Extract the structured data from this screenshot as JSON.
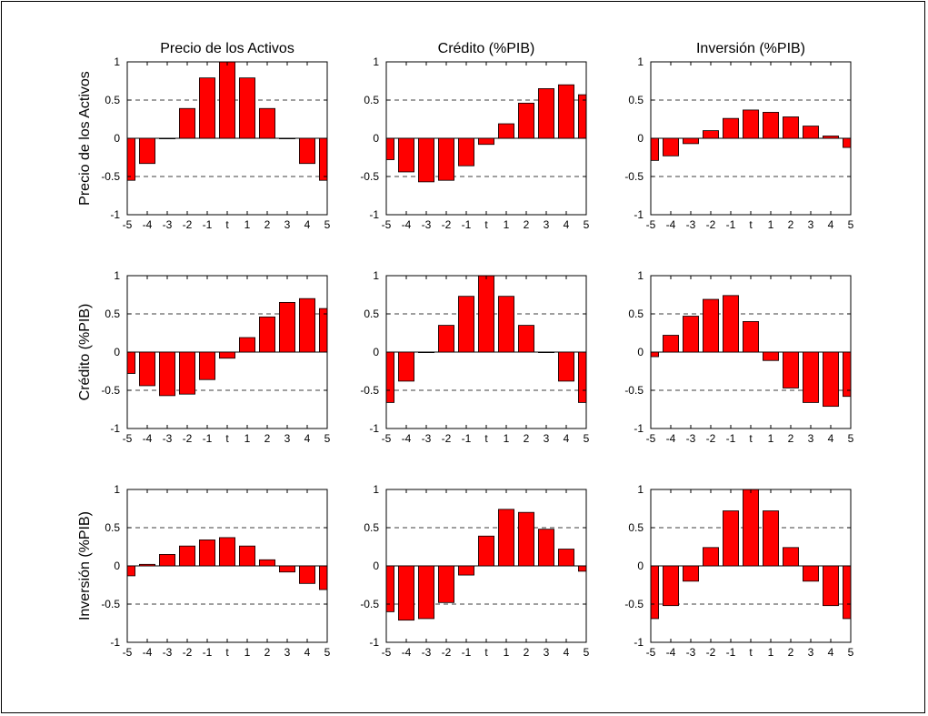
{
  "chart_data": {
    "type": "bar",
    "layout": "3x3 grid",
    "categories": [
      "-5",
      "-4",
      "-3",
      "-2",
      "-1",
      "t",
      "1",
      "2",
      "3",
      "4",
      "5"
    ],
    "ylim": [
      -1,
      1
    ],
    "yticks": [
      "-1",
      "-0.5",
      "0",
      "0.5",
      "1"
    ],
    "grid": "dashed lines at -0.5 and 0.5",
    "bar_color": "#ff0000",
    "bar_edge_color": "#000000",
    "column_titles": [
      "Precio de los Activos",
      "Crédito (%PIB)",
      "Inversión (%PIB)"
    ],
    "row_labels": [
      "Precio de los Activos",
      "Crédito (%PIB)",
      "Inversión (%PIB)"
    ],
    "panels": [
      {
        "row": 0,
        "col": 0,
        "values": [
          -0.55,
          -0.33,
          0.0,
          0.39,
          0.79,
          1.0,
          0.79,
          0.39,
          0.0,
          -0.33,
          -0.55
        ]
      },
      {
        "row": 0,
        "col": 1,
        "values": [
          -0.28,
          -0.44,
          -0.57,
          -0.55,
          -0.36,
          -0.08,
          0.19,
          0.46,
          0.65,
          0.7,
          0.57
        ]
      },
      {
        "row": 0,
        "col": 2,
        "values": [
          -0.29,
          -0.23,
          -0.07,
          0.1,
          0.26,
          0.37,
          0.34,
          0.28,
          0.16,
          0.03,
          -0.12
        ]
      },
      {
        "row": 1,
        "col": 0,
        "values": [
          -0.28,
          -0.44,
          -0.57,
          -0.55,
          -0.36,
          -0.08,
          0.19,
          0.46,
          0.65,
          0.7,
          0.57
        ]
      },
      {
        "row": 1,
        "col": 1,
        "values": [
          -0.66,
          -0.38,
          0.0,
          0.35,
          0.73,
          1.0,
          0.73,
          0.35,
          0.0,
          -0.38,
          -0.66
        ]
      },
      {
        "row": 1,
        "col": 2,
        "values": [
          -0.06,
          0.22,
          0.47,
          0.69,
          0.74,
          0.4,
          -0.11,
          -0.47,
          -0.66,
          -0.71,
          -0.58
        ]
      },
      {
        "row": 2,
        "col": 0,
        "values": [
          -0.13,
          0.02,
          0.15,
          0.26,
          0.34,
          0.37,
          0.26,
          0.08,
          -0.08,
          -0.23,
          -0.31
        ]
      },
      {
        "row": 2,
        "col": 1,
        "values": [
          -0.6,
          -0.71,
          -0.69,
          -0.48,
          -0.12,
          0.39,
          0.74,
          0.7,
          0.48,
          0.22,
          -0.07
        ]
      },
      {
        "row": 2,
        "col": 2,
        "values": [
          -0.69,
          -0.52,
          -0.2,
          0.24,
          0.72,
          1.0,
          0.72,
          0.24,
          -0.2,
          -0.52,
          -0.69
        ]
      }
    ]
  }
}
